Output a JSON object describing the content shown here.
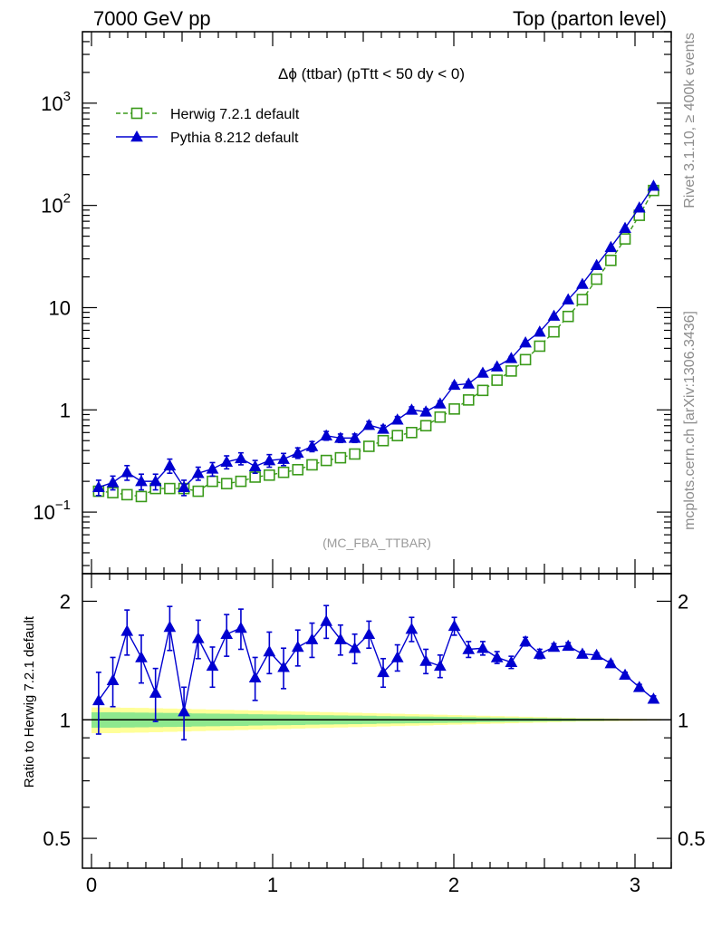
{
  "header": {
    "left": "7000 GeV pp",
    "right": "Top (parton level)"
  },
  "side": {
    "rivet": "Rivet 3.1.10, ≥ 400k events",
    "mcplots": "mcplots.cern.ch [arXiv:1306.3436]"
  },
  "chart_data": [
    {
      "type": "line",
      "title": "Δϕ (ttbar) (pTtt < 50 dy < 0)",
      "watermark": "(MC_FBA_TTBAR)",
      "yscale": "log",
      "xlim": [
        -0.05,
        3.2
      ],
      "ylim": [
        0.025,
        5000
      ],
      "yticks": [
        {
          "value": 1000,
          "label": "10",
          "exp": "3"
        },
        {
          "value": 100,
          "label": "10",
          "exp": "2"
        },
        {
          "value": 10,
          "label": "10",
          "exp": ""
        },
        {
          "value": 1,
          "label": "1",
          "exp": ""
        },
        {
          "value": 0.1,
          "label": "10",
          "exp": "−1"
        }
      ],
      "legend_position": "top-left",
      "x": [
        0.0393,
        0.1178,
        0.1963,
        0.2749,
        0.3534,
        0.432,
        0.5105,
        0.589,
        0.6676,
        0.7461,
        0.8247,
        0.9032,
        0.9817,
        1.0603,
        1.1388,
        1.2174,
        1.2959,
        1.3744,
        1.453,
        1.5315,
        1.6101,
        1.6886,
        1.7671,
        1.8457,
        1.9242,
        2.0028,
        2.0813,
        2.1598,
        2.2384,
        2.3169,
        2.3955,
        2.474,
        2.5525,
        2.6311,
        2.7096,
        2.7882,
        2.8667,
        2.9452,
        3.0238,
        3.1023
      ],
      "series": [
        {
          "name": "Herwig 7.2.1 default",
          "color": "#3a9a1a",
          "marker": "open-square",
          "dashed": true,
          "values": [
            0.16,
            0.155,
            0.148,
            0.142,
            0.17,
            0.17,
            0.17,
            0.16,
            0.2,
            0.19,
            0.2,
            0.22,
            0.23,
            0.245,
            0.26,
            0.29,
            0.32,
            0.34,
            0.37,
            0.44,
            0.5,
            0.56,
            0.6,
            0.7,
            0.85,
            1.02,
            1.25,
            1.55,
            1.95,
            2.4,
            3.1,
            4.2,
            5.8,
            8.2,
            12.0,
            19.0,
            29.0,
            47.0,
            80.0,
            140.0
          ],
          "errors": []
        },
        {
          "name": "Pythia 8.212 default",
          "color": "#0000d0",
          "marker": "filled-triangle",
          "dashed": false,
          "values": [
            0.175,
            0.195,
            0.245,
            0.2,
            0.2,
            0.285,
            0.175,
            0.24,
            0.265,
            0.31,
            0.335,
            0.28,
            0.32,
            0.33,
            0.38,
            0.44,
            0.56,
            0.53,
            0.53,
            0.71,
            0.65,
            0.8,
            1.0,
            0.96,
            1.15,
            1.75,
            1.8,
            2.3,
            2.65,
            3.2,
            4.55,
            5.8,
            8.3,
            12.0,
            17.0,
            26.0,
            39.0,
            60.0,
            95.0,
            155.0
          ],
          "errors": [
            0.03,
            0.03,
            0.04,
            0.035,
            0.035,
            0.045,
            0.03,
            0.035,
            0.04,
            0.045,
            0.045,
            0.04,
            0.045,
            0.045,
            0.045,
            0.05,
            0.055,
            0.05,
            0.05,
            0.06,
            0.055,
            0.06,
            0.07,
            0.065,
            0.075,
            0.09,
            0.09,
            0.1,
            0.11,
            0.12,
            0.15,
            0.18,
            0.23,
            0.3,
            0.4,
            0.55,
            0.75,
            1.1,
            1.6,
            2.5
          ]
        }
      ]
    },
    {
      "type": "line",
      "ylabel": "Ratio to Herwig 7.2.1 default",
      "yscale": "log",
      "xlim": [
        -0.05,
        3.2
      ],
      "ylim": [
        0.42,
        2.35
      ],
      "yticks": [
        {
          "value": 2,
          "label": "2"
        },
        {
          "value": 1,
          "label": "1"
        },
        {
          "value": 0.5,
          "label": "0.5"
        }
      ],
      "xticks": [
        {
          "value": 0,
          "label": "0"
        },
        {
          "value": 1,
          "label": "1"
        },
        {
          "value": 2,
          "label": "2"
        },
        {
          "value": 3,
          "label": "3"
        }
      ],
      "reference_line": 1,
      "bands": {
        "x_edges": [
          0.0,
          0.0785,
          0.157,
          0.2356,
          0.3142,
          0.3927,
          0.4712,
          0.5498,
          0.6283,
          0.7069,
          0.7854,
          0.8639,
          0.9425,
          1.021,
          1.0996,
          1.1781,
          1.2566,
          1.3352,
          1.4137,
          1.4923,
          1.5708,
          1.6493,
          1.7279,
          1.8064,
          1.885,
          1.9635,
          2.042,
          2.1206,
          2.1991,
          2.2777,
          2.3562,
          2.4347,
          2.5133,
          2.5918,
          2.6704,
          2.7489,
          2.8274,
          2.906,
          2.9845,
          3.0631,
          3.1416
        ],
        "outer": {
          "name": "",
          "color": "#ffff99",
          "halfwidth": [
            0.075,
            0.075,
            0.073,
            0.072,
            0.07,
            0.068,
            0.066,
            0.064,
            0.062,
            0.06,
            0.058,
            0.056,
            0.054,
            0.052,
            0.05,
            0.048,
            0.046,
            0.044,
            0.042,
            0.04,
            0.038,
            0.036,
            0.034,
            0.032,
            0.03,
            0.028,
            0.026,
            0.024,
            0.022,
            0.02,
            0.018,
            0.016,
            0.014,
            0.012,
            0.01,
            0.009,
            0.008,
            0.007,
            0.006,
            0.005
          ]
        },
        "inner": {
          "name": "",
          "color": "#8ee88e",
          "halfwidth": [
            0.045,
            0.045,
            0.044,
            0.043,
            0.042,
            0.041,
            0.04,
            0.038,
            0.037,
            0.036,
            0.035,
            0.033,
            0.032,
            0.031,
            0.03,
            0.028,
            0.027,
            0.026,
            0.025,
            0.024,
            0.022,
            0.021,
            0.02,
            0.019,
            0.018,
            0.017,
            0.016,
            0.014,
            0.013,
            0.012,
            0.011,
            0.01,
            0.009,
            0.008,
            0.007,
            0.006,
            0.005,
            0.004,
            0.004,
            0.003
          ]
        }
      },
      "x": [
        0.0393,
        0.1178,
        0.1963,
        0.2749,
        0.3534,
        0.432,
        0.5105,
        0.589,
        0.6676,
        0.7461,
        0.8247,
        0.9032,
        0.9817,
        1.0603,
        1.1388,
        1.2174,
        1.2959,
        1.3744,
        1.453,
        1.5315,
        1.6101,
        1.6886,
        1.7671,
        1.8457,
        1.9242,
        2.0028,
        2.0813,
        2.1598,
        2.2384,
        2.3169,
        2.3955,
        2.474,
        2.5525,
        2.6311,
        2.7096,
        2.7882,
        2.8667,
        2.9452,
        3.0238,
        3.1023
      ],
      "series": [
        {
          "name": "Pythia 8.212 default",
          "color": "#0000d0",
          "marker": "filled-triangle",
          "values": [
            1.12,
            1.26,
            1.68,
            1.44,
            1.17,
            1.72,
            1.05,
            1.61,
            1.37,
            1.65,
            1.71,
            1.28,
            1.49,
            1.36,
            1.53,
            1.6,
            1.78,
            1.6,
            1.52,
            1.65,
            1.32,
            1.44,
            1.7,
            1.41,
            1.37,
            1.73,
            1.51,
            1.52,
            1.44,
            1.4,
            1.58,
            1.47,
            1.53,
            1.54,
            1.47,
            1.46,
            1.39,
            1.3,
            1.21,
            1.13
          ],
          "errors": [
            0.2,
            0.18,
            0.22,
            0.2,
            0.18,
            0.22,
            0.16,
            0.18,
            0.16,
            0.2,
            0.2,
            0.16,
            0.18,
            0.16,
            0.16,
            0.16,
            0.17,
            0.14,
            0.13,
            0.13,
            0.11,
            0.11,
            0.12,
            0.1,
            0.09,
            0.09,
            0.07,
            0.06,
            0.05,
            0.05,
            0.04,
            0.04,
            0.03,
            0.03,
            0.02,
            0.02,
            0.02,
            0.02,
            0.02,
            0.02
          ]
        }
      ]
    }
  ]
}
